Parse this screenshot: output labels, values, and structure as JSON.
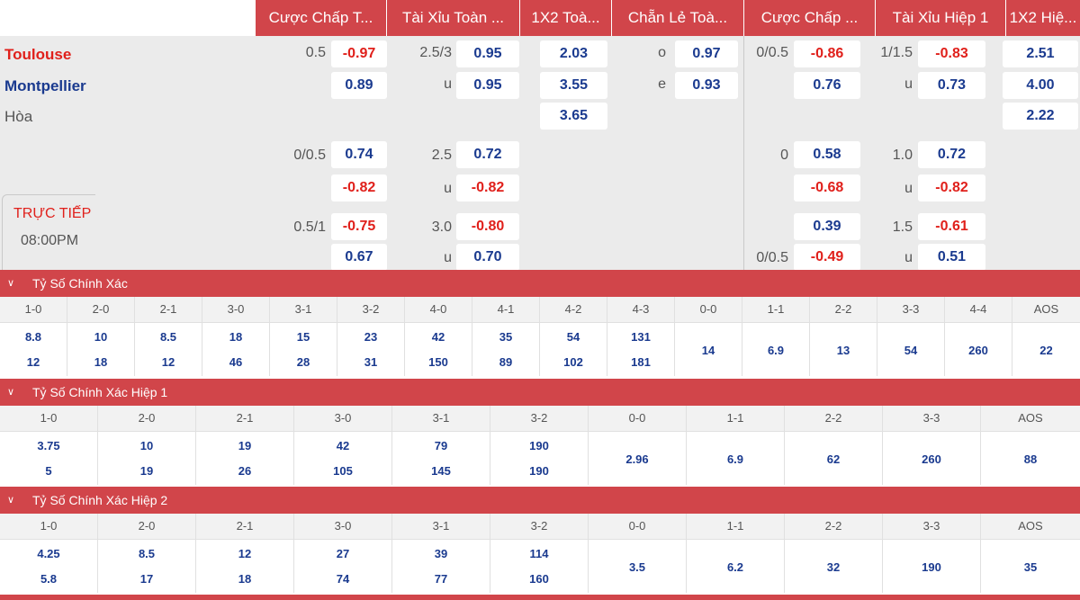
{
  "headers": [
    "Cược Chấp T...",
    "Tài Xỉu Toàn ...",
    "1X2 Toà...",
    "Chẵn Lẻ Toà...",
    "Cược Chấp ...",
    "Tài Xỉu Hiệp 1",
    "1X2 Hiệ..."
  ],
  "teams": {
    "home": "Toulouse",
    "away": "Montpellier",
    "draw": "Hòa"
  },
  "live": {
    "label": "TRỰC TIẾP",
    "time": "08:00PM"
  },
  "ft_handicap": [
    {
      "line": "0.5",
      "home": "-0.97",
      "away": "0.89"
    },
    {
      "line": "0/0.5",
      "home": "0.74",
      "away": "-0.82"
    },
    {
      "line": "0.5/1",
      "home": "-0.75",
      "away": "0.67"
    }
  ],
  "ft_ou": [
    {
      "line": "2.5/3",
      "over": "0.95",
      "u": "u",
      "under": "0.95"
    },
    {
      "line": "2.5",
      "over": "0.72",
      "u": "u",
      "under": "-0.82"
    },
    {
      "line": "3.0",
      "over": "-0.80",
      "u": "u",
      "under": "0.70"
    }
  ],
  "ft_1x2": {
    "home": "2.03",
    "away": "3.55",
    "draw": "3.65"
  },
  "ft_oe": {
    "o_label": "o",
    "o": "0.97",
    "e_label": "e",
    "e": "0.93"
  },
  "h1_handicap": [
    {
      "line": "0/0.5",
      "home": "-0.86",
      "away": "0.76"
    },
    {
      "line": "0",
      "home": "0.58",
      "away": "-0.68"
    },
    {
      "line": "0/0.5",
      "home": "0.39",
      "away": "-0.49"
    }
  ],
  "h1_ou": [
    {
      "line": "1/1.5",
      "over": "-0.83",
      "u": "u",
      "under": "0.73"
    },
    {
      "line": "1.0",
      "over": "0.72",
      "u": "u",
      "under": "-0.82"
    },
    {
      "line": "1.5",
      "over": "-0.61",
      "u": "u",
      "under": "0.51"
    }
  ],
  "h1_1x2": {
    "home": "2.51",
    "away": "4.00",
    "draw": "2.22"
  },
  "sections": [
    {
      "title": "Tỷ Số Chính Xác",
      "scores": [
        "1-0",
        "2-0",
        "2-1",
        "3-0",
        "3-1",
        "3-2",
        "4-0",
        "4-1",
        "4-2",
        "4-3",
        "0-0",
        "1-1",
        "2-2",
        "3-3",
        "4-4",
        "AOS"
      ],
      "home": [
        "8.8",
        "10",
        "8.5",
        "18",
        "15",
        "23",
        "42",
        "35",
        "54",
        "131"
      ],
      "away": [
        "12",
        "18",
        "12",
        "46",
        "28",
        "31",
        "150",
        "89",
        "102",
        "181"
      ],
      "draws": [
        "14",
        "6.9",
        "13",
        "54",
        "260",
        "22"
      ]
    },
    {
      "title": "Tỷ Số Chính Xác Hiệp 1",
      "scores": [
        "1-0",
        "2-0",
        "2-1",
        "3-0",
        "3-1",
        "3-2",
        "0-0",
        "1-1",
        "2-2",
        "3-3",
        "AOS"
      ],
      "home": [
        "3.75",
        "10",
        "19",
        "42",
        "79",
        "190"
      ],
      "away": [
        "5",
        "19",
        "26",
        "105",
        "145",
        "190"
      ],
      "draws": [
        "2.96",
        "6.9",
        "62",
        "260",
        "88"
      ]
    },
    {
      "title": "Tỷ Số Chính Xác Hiệp 2",
      "scores": [
        "1-0",
        "2-0",
        "2-1",
        "3-0",
        "3-1",
        "3-2",
        "0-0",
        "1-1",
        "2-2",
        "3-3",
        "AOS"
      ],
      "home": [
        "4.25",
        "8.5",
        "12",
        "27",
        "39",
        "114"
      ],
      "away": [
        "5.8",
        "17",
        "18",
        "74",
        "77",
        "160"
      ],
      "draws": [
        "3.5",
        "6.2",
        "32",
        "190",
        "35"
      ]
    }
  ],
  "colors": {
    "header_bg": "#d1454a",
    "positive": "#1a3a8f",
    "negative": "#e0201b"
  }
}
